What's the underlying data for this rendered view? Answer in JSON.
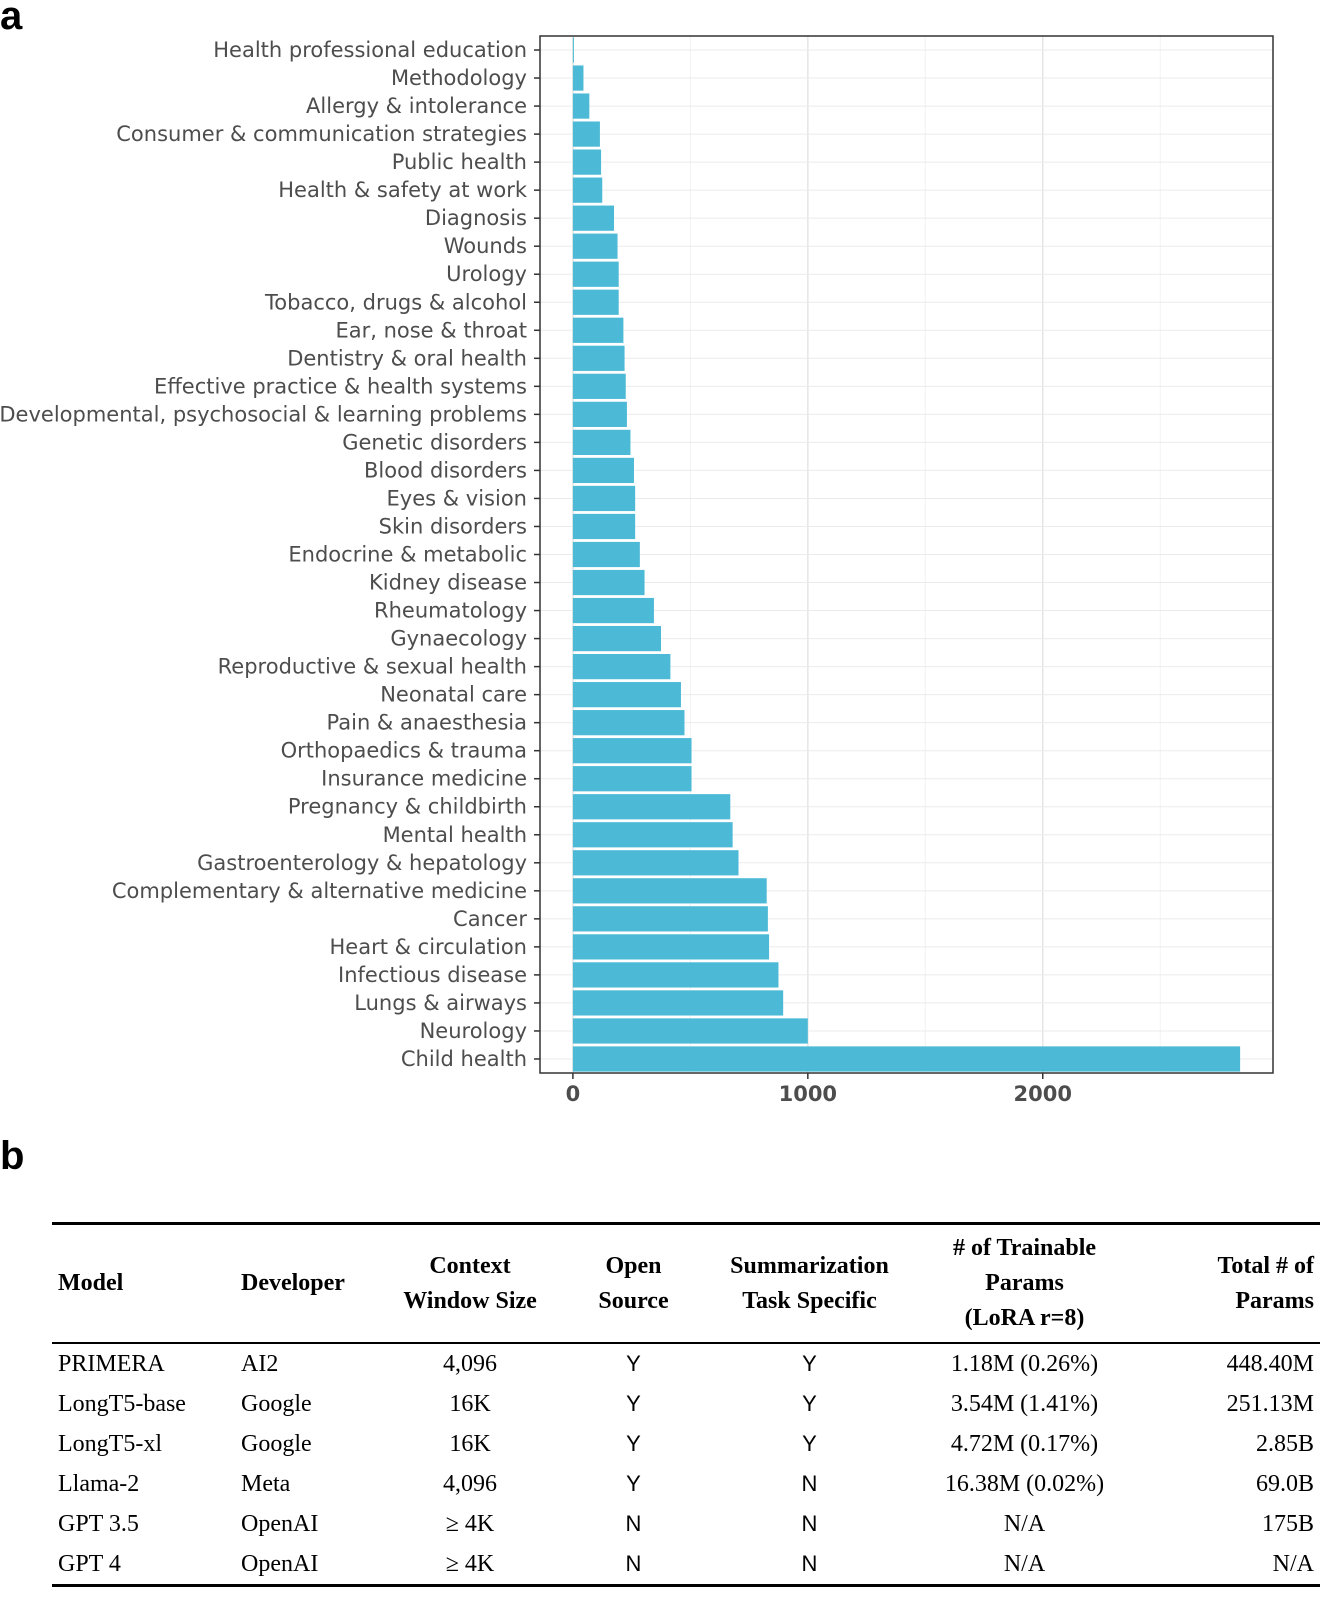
{
  "panels": {
    "a": "a",
    "b": "b"
  },
  "chart_data": {
    "type": "bar",
    "orientation": "horizontal",
    "categories": [
      "Health professional education",
      "Methodology",
      "Allergy & intolerance",
      "Consumer & communication strategies",
      "Public health",
      "Health & safety at work",
      "Diagnosis",
      "Wounds",
      "Urology",
      "Tobacco, drugs & alcohol",
      "Ear, nose & throat",
      "Dentistry & oral health",
      "Effective practice & health systems",
      "Developmental, psychosocial & learning problems",
      "Genetic disorders",
      "Blood disorders",
      "Eyes & vision",
      "Skin disorders",
      "Endocrine & metabolic",
      "Kidney disease",
      "Rheumatology",
      "Gynaecology",
      "Reproductive & sexual health",
      "Neonatal care",
      "Pain & anaesthesia",
      "Orthopaedics & trauma",
      "Insurance medicine",
      "Pregnancy & childbirth",
      "Mental health",
      "Gastroenterology & hepatology",
      "Complementary & alternative medicine",
      "Cancer",
      "Heart & circulation",
      "Infectious disease",
      "Lungs & airways",
      "Neurology",
      "Child health"
    ],
    "values": [
      3,
      45,
      70,
      115,
      120,
      125,
      175,
      190,
      195,
      195,
      215,
      220,
      225,
      230,
      245,
      260,
      265,
      265,
      285,
      305,
      345,
      375,
      415,
      460,
      475,
      505,
      505,
      670,
      680,
      705,
      825,
      830,
      835,
      875,
      895,
      1000,
      2840
    ],
    "xlim": [
      -140,
      2980
    ],
    "xticks": [
      0,
      1000,
      2000
    ],
    "title": "",
    "xlabel": "",
    "ylabel": "",
    "grid": true,
    "bar_color": "#4cbad6"
  },
  "table": {
    "headers": [
      [
        "Model"
      ],
      [
        "Developer"
      ],
      [
        "Context",
        "Window Size"
      ],
      [
        "Open",
        "Source"
      ],
      [
        "Summarization",
        "Task Specific"
      ],
      [
        "# of Trainable",
        "Params",
        "(LoRA r=8)"
      ],
      [
        "Total # of",
        "Params"
      ]
    ],
    "rows": [
      [
        "PRIMERA",
        "AI2",
        "4,096",
        "Y",
        "Y",
        "1.18M (0.26%)",
        "448.40M"
      ],
      [
        "LongT5-base",
        "Google",
        "16K",
        "Y",
        "Y",
        "3.54M (1.41%)",
        "251.13M"
      ],
      [
        "LongT5-xl",
        "Google",
        "16K",
        "Y",
        "Y",
        "4.72M (0.17%)",
        "2.85B"
      ],
      [
        "Llama-2",
        "Meta",
        "4,096",
        "Y",
        "N",
        "16.38M (0.02%)",
        "69.0B"
      ],
      [
        "GPT 3.5",
        "OpenAI",
        "≥ 4K",
        "N",
        "N",
        "N/A",
        "175B"
      ],
      [
        "GPT 4",
        "OpenAI",
        "≥ 4K",
        "N",
        "N",
        "N/A",
        "N/A"
      ]
    ]
  }
}
